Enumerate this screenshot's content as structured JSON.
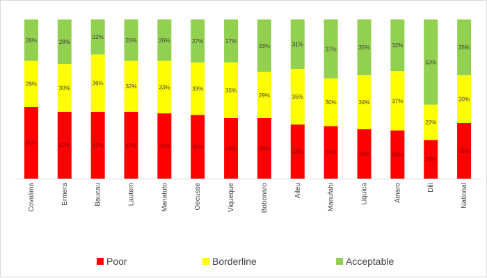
{
  "chart_data": {
    "type": "bar",
    "stacked": true,
    "percent_stacked": true,
    "categories": [
      "Covalima",
      "Ermera",
      "Baucau",
      "Lautem",
      "Manatuto",
      "Oecusse",
      "Viqueque",
      "Bobonaro",
      "Aileu",
      "Manufahi",
      "Liquica",
      "Ainaro",
      "Dili",
      "National"
    ],
    "series": [
      {
        "name": "Poor",
        "color": "#ff0000",
        "values": [
          45,
          42,
          42,
          42,
          41,
          40,
          38,
          38,
          34,
          33,
          31,
          30,
          24,
          35
        ]
      },
      {
        "name": "Borderline",
        "color": "#ffff00",
        "values": [
          29,
          30,
          36,
          32,
          33,
          33,
          35,
          29,
          35,
          30,
          34,
          37,
          22,
          30
        ]
      },
      {
        "name": "Acceptable",
        "color": "#92d050",
        "values": [
          26,
          28,
          22,
          26,
          26,
          27,
          27,
          33,
          31,
          37,
          35,
          32,
          53,
          35
        ]
      }
    ],
    "ylim": [
      0,
      100
    ],
    "grid": false,
    "legend": "bottom",
    "data_labels": true
  }
}
